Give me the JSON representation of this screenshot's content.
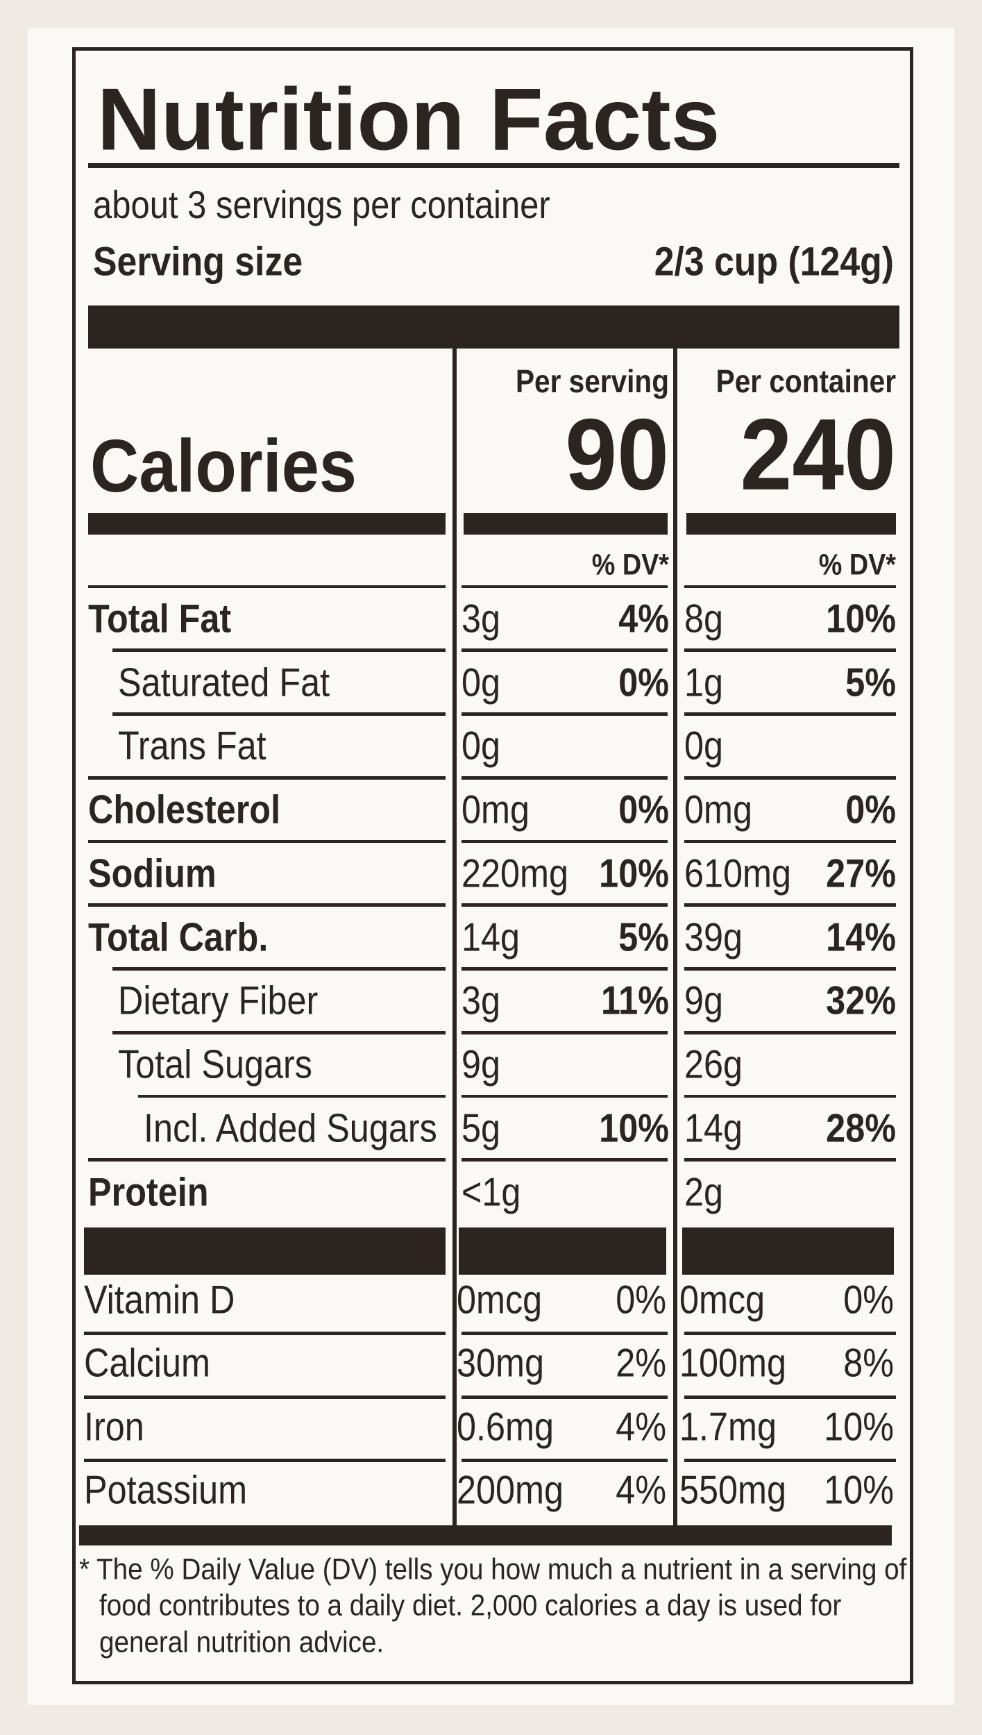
{
  "title": "Nutrition Facts",
  "servings": "about 3 servings per container",
  "serving_size": {
    "label": "Serving size",
    "value": "2/3 cup (124g)"
  },
  "columns": [
    "Per serving",
    "Per container"
  ],
  "calories": {
    "label": "Calories",
    "values": [
      "90",
      "240"
    ]
  },
  "dv_header": [
    "% DV*",
    "% DV*"
  ],
  "nutrients": [
    {
      "name": "Total Fat",
      "bold": true,
      "indent": 0,
      "cells": [
        [
          "3g",
          "4%"
        ],
        [
          "8g",
          "10%"
        ]
      ]
    },
    {
      "name": "Saturated Fat",
      "bold": false,
      "indent": 1,
      "cells": [
        [
          "0g",
          "0%"
        ],
        [
          "1g",
          "5%"
        ]
      ]
    },
    {
      "name": "Trans Fat",
      "bold": false,
      "indent": 1,
      "cells": [
        [
          "0g"
        ],
        [
          "0g"
        ]
      ]
    },
    {
      "name": "Cholesterol",
      "bold": true,
      "indent": 0,
      "cells": [
        [
          "0mg",
          "0%"
        ],
        [
          "0mg",
          "0%"
        ]
      ]
    },
    {
      "name": "Sodium",
      "bold": true,
      "indent": 0,
      "cells": [
        [
          "220mg",
          "10%"
        ],
        [
          "610mg",
          "27%"
        ]
      ]
    },
    {
      "name": "Total Carb.",
      "bold": true,
      "indent": 0,
      "cells": [
        [
          "14g",
          "5%"
        ],
        [
          "39g",
          "14%"
        ]
      ]
    },
    {
      "name": "Dietary Fiber",
      "bold": false,
      "indent": 1,
      "cells": [
        [
          "3g",
          "11%"
        ],
        [
          "9g",
          "32%"
        ]
      ]
    },
    {
      "name": "Total Sugars",
      "bold": false,
      "indent": 1,
      "cells": [
        [
          "9g"
        ],
        [
          "26g"
        ]
      ]
    },
    {
      "name": "Incl. Added Sugars",
      "bold": false,
      "indent": 2,
      "cells": [
        [
          "5g",
          "10%"
        ],
        [
          "14g",
          "28%"
        ]
      ]
    },
    {
      "name": "Protein",
      "bold": true,
      "indent": 0,
      "cells": [
        [
          "<1g"
        ],
        [
          "2g"
        ]
      ]
    }
  ],
  "vitamins": [
    {
      "name": "Vitamin D",
      "cells": [
        [
          "0mcg",
          "0%"
        ],
        [
          "0mcg",
          "0%"
        ]
      ]
    },
    {
      "name": "Calcium",
      "cells": [
        [
          "30mg",
          "2%"
        ],
        [
          "100mg",
          "8%"
        ]
      ]
    },
    {
      "name": "Iron",
      "cells": [
        [
          "0.6mg",
          "4%"
        ],
        [
          "1.7mg",
          "10%"
        ]
      ]
    },
    {
      "name": "Potassium",
      "cells": [
        [
          "200mg",
          "4%"
        ],
        [
          "550mg",
          "10%"
        ]
      ]
    }
  ],
  "footnote": [
    "* The % Daily Value (DV) tells you how much a nutrient in a serving of",
    "food contributes to a daily diet. 2,000 calories a day is used for",
    "general nutrition advice."
  ]
}
